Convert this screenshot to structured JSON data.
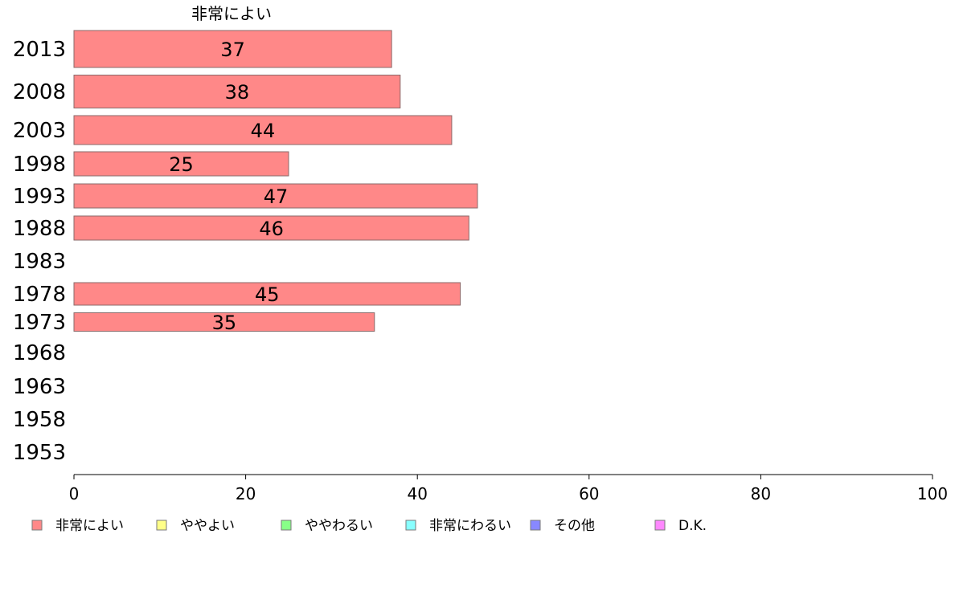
{
  "chart_data": {
    "type": "bar",
    "orientation": "horizontal",
    "title": "非常によい",
    "categories": [
      "2013",
      "2008",
      "2003",
      "1998",
      "1993",
      "1988",
      "1983",
      "1978",
      "1973",
      "1968",
      "1963",
      "1958",
      "1953"
    ],
    "series": [
      {
        "name": "非常によい",
        "color": "#ff8888",
        "values": [
          37,
          38,
          44,
          25,
          47,
          46,
          null,
          45,
          35,
          null,
          null,
          null,
          null
        ]
      }
    ],
    "xlim": [
      0,
      100
    ],
    "xticks": [
      0,
      20,
      40,
      60,
      80,
      100
    ],
    "grid": false,
    "legend_position": "bottom",
    "legend": [
      {
        "label": "非常によい",
        "color": "#ff8888"
      },
      {
        "label": "ややよい",
        "color": "#ffff88"
      },
      {
        "label": "ややわるい",
        "color": "#88ff88"
      },
      {
        "label": "非常にわるい",
        "color": "#88ffff"
      },
      {
        "label": "その他",
        "color": "#8888ff"
      },
      {
        "label": "D.K.",
        "color": "#ff88ff"
      }
    ]
  }
}
